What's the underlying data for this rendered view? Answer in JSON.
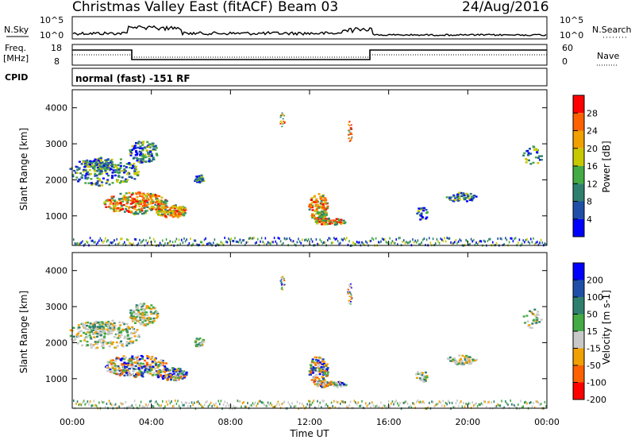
{
  "header": {
    "title": "Christmas Valley East (fitACF)",
    "beam": "Beam 03",
    "date": "24/Aug/2016"
  },
  "panels": {
    "nsky_label": "N.Sky",
    "nsky_ticks": [
      "10^5",
      "10^0"
    ],
    "nsearch_label": "N.Search",
    "nsearch_ticks": [
      "10^5",
      "10^0"
    ],
    "freq_label_1": "Freq.",
    "freq_label_2": "[MHz]",
    "freq_ticks": [
      "18",
      "8"
    ],
    "nave_label": "Nave",
    "nave_ticks": [
      "60",
      "0"
    ],
    "cpid_label": "CPID",
    "cpid_text": "normal (fast) -151 RF"
  },
  "colors": {
    "power_scale": [
      "#0000ff",
      "#1f4fa8",
      "#2f7f6f",
      "#44aa44",
      "#c8c800",
      "#f0a000",
      "#ff6000",
      "#ff0000"
    ],
    "velocity_scale": [
      "#0000ff",
      "#1f4fa8",
      "#2f7f6f",
      "#44aa44",
      "#c8c8c8",
      "#f0a000",
      "#ff6000",
      "#ff0000"
    ]
  },
  "chart_data": [
    {
      "type": "heatmap",
      "title": "Power",
      "xlabel": "Time UT",
      "ylabel": "Slant Range [km]",
      "x_ticks": [
        "00:00",
        "04:00",
        "08:00",
        "12:00",
        "16:00",
        "20:00",
        "00:00"
      ],
      "y_ticks": [
        "1000",
        "2000",
        "3000",
        "4000"
      ],
      "ylim": [
        180,
        4500
      ],
      "colorbar_label": "Power [dB]",
      "colorbar_ticks": [
        "4",
        "8",
        "12",
        "16",
        "20",
        "24",
        "28"
      ]
    },
    {
      "type": "heatmap",
      "title": "Velocity",
      "xlabel": "Time UT",
      "ylabel": "Slant Range [km]",
      "x_ticks": [
        "00:00",
        "04:00",
        "08:00",
        "12:00",
        "16:00",
        "20:00",
        "00:00"
      ],
      "y_ticks": [
        "1000",
        "2000",
        "3000",
        "4000"
      ],
      "ylim": [
        180,
        4500
      ],
      "colorbar_label": "Velocity [m s-1]",
      "colorbar_ticks": [
        "200",
        "100",
        "50",
        "15",
        "-15",
        "-50",
        "-100",
        "-200"
      ]
    }
  ]
}
